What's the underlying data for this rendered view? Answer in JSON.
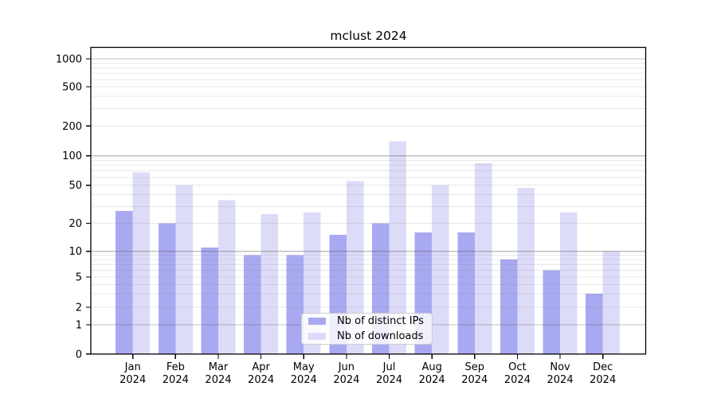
{
  "chart_data": {
    "type": "bar",
    "title": "mclust 2024",
    "categories": [
      "Jan",
      "Feb",
      "Mar",
      "Apr",
      "May",
      "Jun",
      "Jul",
      "Aug",
      "Sep",
      "Oct",
      "Nov",
      "Dec"
    ],
    "x_tick_year": "2024",
    "series": [
      {
        "name": "Nb of distinct IPs",
        "color": "#a9a9f1",
        "values": [
          27,
          20,
          11,
          9,
          9,
          15,
          20,
          16,
          16,
          8,
          6,
          3
        ]
      },
      {
        "name": "Nb of downloads",
        "color": "#dcdcf9",
        "values": [
          68,
          50,
          35,
          25,
          26,
          55,
          140,
          50,
          84,
          47,
          26,
          10
        ]
      }
    ],
    "y_axis": {
      "ticks": [
        0,
        1,
        2,
        5,
        10,
        20,
        50,
        100,
        200,
        500,
        1000
      ],
      "scale": "log(1+x)"
    },
    "grid": true,
    "legend_position": "lower center"
  }
}
